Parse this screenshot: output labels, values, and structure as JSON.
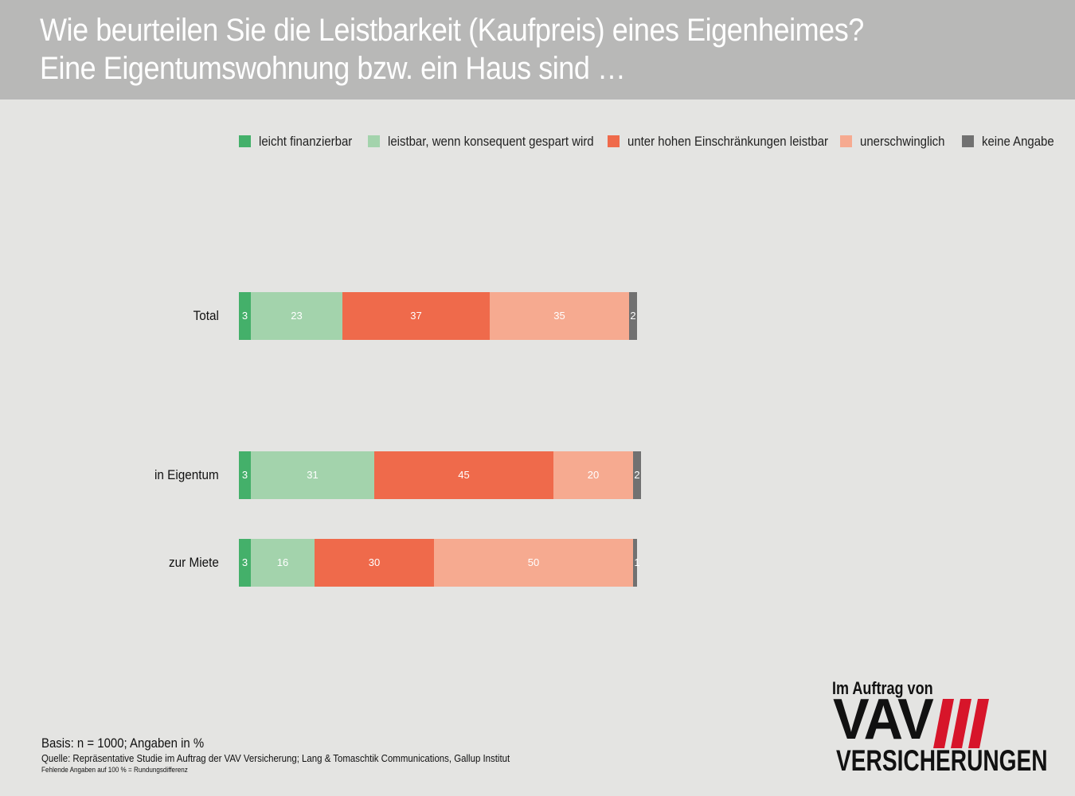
{
  "header": {
    "title_line1": "Wie beurteilen Sie die Leistbarkeit (Kaufpreis) eines Eigenheimes?",
    "title_line2": "Eine Eigentumswohnung bzw. ein Haus sind …"
  },
  "chart_data": {
    "type": "bar",
    "orientation": "horizontal",
    "stacked": true,
    "title": "Wie beurteilen Sie die Leistbarkeit (Kaufpreis) eines Eigenheimes? Eine Eigentumswohnung bzw. ein Haus sind …",
    "categories": [
      "Total",
      "in Eigentum",
      "zur Miete"
    ],
    "series": [
      {
        "name": "leicht finanzierbar",
        "color": "#44b06a",
        "values": [
          3,
          3,
          3
        ]
      },
      {
        "name": "leistbar, wenn konsequent gespart wird",
        "color": "#a3d3ac",
        "values": [
          23,
          31,
          16
        ]
      },
      {
        "name": "unter hohen Einschränkungen leistbar",
        "color": "#ef6a4b",
        "values": [
          37,
          45,
          30
        ]
      },
      {
        "name": "unerschwinglich",
        "color": "#f6aa90",
        "values": [
          35,
          20,
          50
        ]
      },
      {
        "name": "keine Angabe",
        "color": "#717171",
        "values": [
          2,
          2,
          1
        ]
      }
    ],
    "unit": "%",
    "legend_position": "top"
  },
  "footer": {
    "basis": "Basis: n = 1000; Angaben in %",
    "source": "Quelle: Repräsentative Studie im Auftrag der VAV Versicherung; Lang & Tomaschtik Communications, Gallup Institut",
    "note": "Fehlende Angaben auf 100 % = Rundungsdifferenz"
  },
  "logo": {
    "tagline": "Im Auftrag von",
    "brand": "VAV",
    "brand_sub": "VERSICHERUNGEN",
    "accent_color": "#d7152a"
  }
}
